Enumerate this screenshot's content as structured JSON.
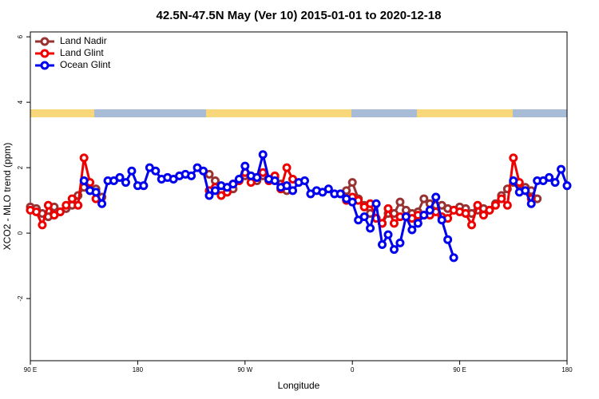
{
  "chart_data": {
    "type": "line",
    "title": "42.5N-47.5N May (Ver 10)   2015-01-01 to 2020-12-18",
    "xlabel": "Longitude",
    "ylabel": "XCO2 - MLO trend (ppm)",
    "xlim": [
      90,
      540
    ],
    "xticks": [
      {
        "value": 90,
        "label": "90 E"
      },
      180,
      {
        "value": 270,
        "label": "90 W"
      },
      {
        "value": 360,
        "label": "0"
      },
      {
        "value": 450,
        "label": "90 E"
      },
      {
        "value": 540,
        "label": "180"
      }
    ],
    "ylim": [
      -3.9,
      6.15
    ],
    "yticks": [
      -2,
      0,
      2,
      4,
      6
    ],
    "legend": "top-left",
    "x": [
      90,
      95,
      100,
      105,
      110,
      115,
      120,
      125,
      130,
      135,
      140,
      145,
      150,
      155,
      160,
      165,
      170,
      175,
      180,
      185,
      190,
      195,
      200,
      205,
      210,
      215,
      220,
      225,
      230,
      235,
      240,
      245,
      250,
      255,
      260,
      265,
      270,
      275,
      280,
      285,
      290,
      295,
      300,
      305,
      310,
      315,
      320,
      325,
      330,
      335,
      340,
      345,
      350,
      355,
      360,
      365,
      370,
      375,
      380,
      385,
      390,
      395,
      400,
      405,
      410,
      415,
      420,
      425,
      430,
      435,
      440,
      445,
      450,
      455,
      460,
      465,
      470,
      475,
      480,
      485,
      490,
      495,
      500,
      505,
      510,
      515,
      520,
      525,
      530,
      535,
      540
    ],
    "series": [
      {
        "name": "Land Nadir",
        "color": "#993333",
        "values": [
          0.8,
          0.75,
          0.6,
          0.5,
          0.8,
          0.65,
          0.75,
          0.85,
          1.15,
          1.4,
          1.3,
          1.35,
          1.1,
          null,
          null,
          null,
          null,
          null,
          null,
          null,
          null,
          null,
          null,
          null,
          null,
          null,
          null,
          null,
          null,
          null,
          1.8,
          1.6,
          1.3,
          1.4,
          1.35,
          1.6,
          1.75,
          1.7,
          1.6,
          1.75,
          1.6,
          1.7,
          1.5,
          1.3,
          null,
          null,
          null,
          null,
          null,
          null,
          null,
          null,
          null,
          1.3,
          1.55,
          1.05,
          0.85,
          0.6,
          0.45,
          0.3,
          0.6,
          0.6,
          0.95,
          0.7,
          0.6,
          0.65,
          1.05,
          0.9,
          0.85,
          0.85,
          0.75,
          0.7,
          0.8,
          0.75,
          0.6,
          0.7,
          0.75,
          0.7,
          0.9,
          1.15,
          1.35,
          1.55,
          1.5,
          1.4,
          1.3,
          1.05,
          null,
          null,
          null,
          null,
          null
        ]
      },
      {
        "name": "Land Glint",
        "color": "#ee0000",
        "values": [
          0.7,
          0.65,
          0.25,
          0.85,
          0.55,
          0.65,
          0.85,
          1.05,
          0.85,
          2.3,
          1.55,
          1.05,
          null,
          null,
          null,
          null,
          null,
          null,
          null,
          null,
          null,
          null,
          null,
          null,
          null,
          null,
          null,
          null,
          null,
          null,
          1.3,
          1.4,
          1.15,
          1.25,
          1.5,
          1.6,
          1.85,
          1.55,
          1.7,
          1.85,
          1.6,
          1.75,
          1.35,
          2.0,
          1.65,
          null,
          null,
          null,
          null,
          null,
          null,
          null,
          null,
          1.0,
          1.1,
          1.0,
          0.8,
          0.9,
          0.45,
          0.3,
          0.75,
          0.3,
          0.5,
          0.5,
          0.45,
          0.55,
          0.55,
          0.55,
          0.65,
          0.5,
          0.45,
          0.7,
          0.65,
          0.6,
          0.25,
          0.85,
          0.55,
          0.7,
          0.85,
          1.05,
          0.85,
          2.3,
          1.55,
          1.3,
          1.05,
          null,
          null,
          null,
          null,
          null,
          null
        ]
      },
      {
        "name": "Ocean Glint",
        "color": "#0000ee",
        "values": [
          null,
          null,
          null,
          null,
          null,
          null,
          null,
          null,
          null,
          1.6,
          1.3,
          1.25,
          0.9,
          1.6,
          1.6,
          1.7,
          1.55,
          1.9,
          1.45,
          1.45,
          2.0,
          1.9,
          1.65,
          1.7,
          1.65,
          1.75,
          1.8,
          1.75,
          2.0,
          1.9,
          1.15,
          1.3,
          1.45,
          1.4,
          1.5,
          1.65,
          2.05,
          1.75,
          1.7,
          2.4,
          1.65,
          1.6,
          1.4,
          1.45,
          1.3,
          1.55,
          1.6,
          1.2,
          1.3,
          1.25,
          1.35,
          1.2,
          1.2,
          1.05,
          0.95,
          0.4,
          0.5,
          0.15,
          0.9,
          -0.35,
          -0.05,
          -0.5,
          -0.3,
          0.5,
          0.1,
          0.3,
          0.55,
          0.7,
          1.1,
          0.4,
          -0.2,
          -0.75,
          null,
          null,
          null,
          null,
          null,
          null,
          null,
          null,
          null,
          1.6,
          1.25,
          1.3,
          0.9,
          1.6,
          1.6,
          1.7,
          1.55,
          1.95,
          1.45
        ]
      }
    ]
  }
}
